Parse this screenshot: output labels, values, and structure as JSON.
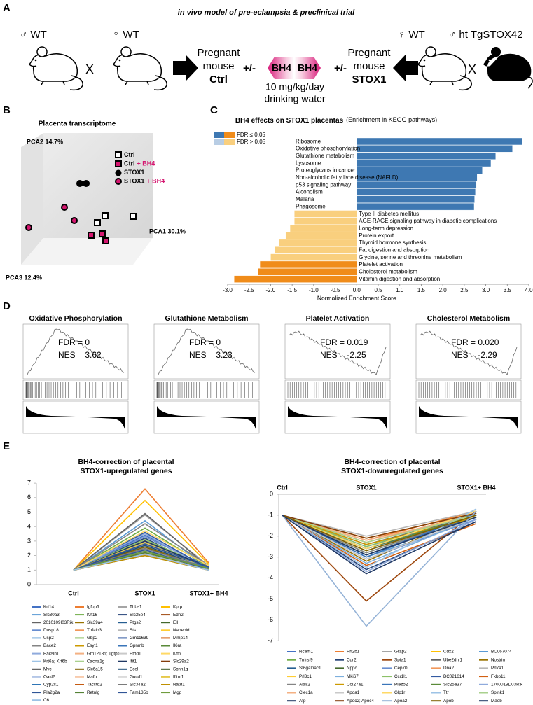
{
  "panel_a": {
    "label": "A",
    "title": "in vivo model of pre-eclampsia & preclinical trial",
    "male_wt": "♂ WT",
    "female_wt": "♀ WT",
    "cross_left": "X",
    "pregnant_ctrl": [
      "Pregnant",
      "mouse",
      "Ctrl"
    ],
    "plusminus_left": "+/-",
    "bh4_left": "BH4",
    "bh4_right": "BH4",
    "dose": [
      "10 mg/kg/day",
      "drinking water"
    ],
    "plusminus_right": "+/-",
    "pregnant_stox1": [
      "Pregnant",
      "mouse",
      "STOX1"
    ],
    "female_wt_right": "♀ WT",
    "cross_right": "X",
    "male_tg": "♂ ht TgSTOX42"
  },
  "panel_b": {
    "label": "B",
    "title": "Placenta transcriptome",
    "pca2": "PCA2 14.7%",
    "pca1": "PCA1 30.1%",
    "pca3": "PCA3 12.4%",
    "legend": [
      {
        "name": "Ctrl"
      },
      {
        "name": "Ctrl",
        "suffix": "+ BH4"
      },
      {
        "name": "STOX1"
      },
      {
        "name": "STOX1",
        "suffix": "+ BH4"
      }
    ]
  },
  "panel_c": {
    "label": "C"
  },
  "panel_d": {
    "label": "D",
    "plots": [
      {
        "title": "Oxidative Phosphorylation",
        "fdr": "FDR = 0",
        "nes": "NES = 3.62"
      },
      {
        "title": "Glutathione Metabolism",
        "fdr": "FDR = 0",
        "nes": "NES = 3.23"
      },
      {
        "title": "Platelet Activation",
        "fdr": "FDR = 0.019",
        "nes": "NES = -2.25"
      },
      {
        "title": "Cholesterol Metabolism",
        "fdr": "FDR = 0.020",
        "nes": "NES = -2.29"
      }
    ]
  },
  "panel_e": {
    "label": "E"
  },
  "chart_data": [
    {
      "type": "hbar",
      "title": "BH4 effects on STOX1 placentas",
      "subtitle": "(Enrichment in KEGG pathways)",
      "x_label": "Normalized Enrichment Score",
      "legend": [
        {
          "label": "FDR ≤ 0.05",
          "colors": [
            "#3e78b2",
            "#f08c1a"
          ]
        },
        {
          "label": "FDR > 0.05",
          "colors": [
            "#b8cde4",
            "#f9cf7e"
          ]
        }
      ],
      "categories": [
        "Ribosome",
        "Oxidative phosphorylation",
        "Glutathione metabolism",
        "Lysosome",
        "Proteoglycans in cancer",
        "Non-alcoholic fatty livre disease (NAFLD)",
        "p53 signaling pathway",
        "Alcoholism",
        "Malaria",
        "Phagosome",
        "Type II diabetes mellitus",
        "AGE-RAGE signaling pathway in diabetic complications",
        "Long-term depression",
        "Protein export",
        "Thyroid hormone synthesis",
        "Fat digestion and absorption",
        "Glycine, serine and threonine metabolism",
        "Platelet activation",
        "Cholesterol metabolism",
        "Vitamin digestion and absorption"
      ],
      "values": [
        3.85,
        3.62,
        3.23,
        3.12,
        2.92,
        2.8,
        2.78,
        2.76,
        2.74,
        2.73,
        -1.45,
        -1.45,
        -1.55,
        -1.65,
        -1.8,
        -1.9,
        -2.0,
        -2.25,
        -2.29,
        -2.85
      ],
      "colors": [
        "#3e78b2",
        "#3e78b2",
        "#3e78b2",
        "#3e78b2",
        "#3e78b2",
        "#3e78b2",
        "#3e78b2",
        "#3e78b2",
        "#3e78b2",
        "#3e78b2",
        "#f9cf7e",
        "#f9cf7e",
        "#f9cf7e",
        "#f9cf7e",
        "#f9cf7e",
        "#f9cf7e",
        "#f9cf7e",
        "#f08c1a",
        "#f08c1a",
        "#f08c1a"
      ],
      "xlim": [
        -3,
        4
      ],
      "xticks": [
        {
          "value": -3,
          "label": "-3.0"
        },
        {
          "value": -2.5,
          "label": "-2.5"
        },
        {
          "value": -2,
          "label": "-2.0"
        },
        {
          "value": -1.5,
          "label": "-1.5"
        },
        {
          "value": -1,
          "label": "-1.0"
        },
        {
          "value": -0.5,
          "label": "-0.5"
        },
        {
          "value": 0,
          "label": "0.0"
        },
        {
          "value": 0.5,
          "label": "0.5"
        },
        {
          "value": 1,
          "label": "1.0"
        },
        {
          "value": 1.5,
          "label": "1.5"
        },
        {
          "value": 2,
          "label": "2.0"
        },
        {
          "value": 2.5,
          "label": "2.5"
        },
        {
          "value": 3,
          "label": "3.0"
        },
        {
          "value": 3.5,
          "label": "3.5"
        },
        {
          "value": 4,
          "label": "4.0"
        }
      ]
    },
    {
      "type": "line",
      "title": [
        "BH4-correction of placental",
        "STOX1-upregulated genes"
      ],
      "categories": [
        "Ctrl",
        "STOX1",
        "STOX1+ BH4"
      ],
      "ylim": [
        0,
        7
      ],
      "yticks": [
        0,
        1,
        2,
        3,
        4,
        5,
        6,
        7
      ],
      "series": [
        {
          "name": "Krt14",
          "color": "#4472c4",
          "values": [
            1,
            3.4,
            1.2
          ]
        },
        {
          "name": "Igfbp6",
          "color": "#ed7d31",
          "values": [
            1,
            6.6,
            1.5
          ]
        },
        {
          "name": "Thbs1",
          "color": "#a5a5a5",
          "values": [
            1,
            4.8,
            1.3
          ]
        },
        {
          "name": "Kprp",
          "color": "#ffc000",
          "values": [
            1,
            5.8,
            1.4
          ]
        },
        {
          "name": "Slc30a3",
          "color": "#5b9bd5",
          "values": [
            1,
            4.4,
            1.1
          ]
        },
        {
          "name": "Krt16",
          "color": "#70ad47",
          "values": [
            1,
            3.9,
            1.2
          ]
        },
        {
          "name": "Slc35e4",
          "color": "#264478",
          "values": [
            1,
            3.2,
            1
          ]
        },
        {
          "name": "Edn2",
          "color": "#9e480e",
          "values": [
            1,
            3,
            1.1
          ]
        },
        {
          "name": "2010109I03Rik",
          "color": "#636363",
          "values": [
            1,
            4.9,
            1.2
          ]
        },
        {
          "name": "Slc39a4",
          "color": "#997300",
          "values": [
            1,
            2.9,
            1
          ]
        },
        {
          "name": "Ptgs2",
          "color": "#255e91",
          "values": [
            1,
            2.6,
            1.1
          ]
        },
        {
          "name": "Ell",
          "color": "#43682b",
          "values": [
            1,
            2.5,
            1
          ]
        },
        {
          "name": "Dusp18",
          "color": "#698ed0",
          "values": [
            1,
            3.3,
            1.2
          ]
        },
        {
          "name": "Tnfaip3",
          "color": "#f1975a",
          "values": [
            1,
            2.8,
            1.1
          ]
        },
        {
          "name": "Sts",
          "color": "#b7b7b7",
          "values": [
            1,
            2.4,
            1
          ]
        },
        {
          "name": "Napepld",
          "color": "#ffcd33",
          "values": [
            1,
            2.3,
            1.1
          ]
        },
        {
          "name": "Usp2",
          "color": "#7cafdd",
          "values": [
            1,
            2.7,
            1
          ]
        },
        {
          "name": "Gbp2",
          "color": "#8cc168",
          "values": [
            1,
            3.1,
            1.2
          ]
        },
        {
          "name": "Gm11639",
          "color": "#335aa1",
          "values": [
            1,
            3.6,
            1.1
          ]
        },
        {
          "name": "Mmp14",
          "color": "#d26012",
          "values": [
            1,
            2.2,
            1
          ]
        },
        {
          "name": "Bace2",
          "color": "#848484",
          "values": [
            1,
            4.2,
            1.3
          ]
        },
        {
          "name": "Esyt1",
          "color": "#cc9a00",
          "values": [
            1,
            2.6,
            1.1
          ]
        },
        {
          "name": "Gpnmb",
          "color": "#3a75b9",
          "values": [
            1,
            2.9,
            1.2
          ]
        },
        {
          "name": "Il6ra",
          "color": "#5a8a39",
          "values": [
            1,
            2.1,
            1
          ]
        },
        {
          "name": "Pacsin1",
          "color": "#8faadc",
          "values": [
            1,
            3.5,
            1
          ]
        },
        {
          "name": "Gm12185; Tgtp1",
          "color": "#f4b183",
          "values": [
            1,
            2.4,
            1.2
          ]
        },
        {
          "name": "Efhd1",
          "color": "#c9c9c9",
          "values": [
            1,
            2.8,
            1.1
          ]
        },
        {
          "name": "Krt5",
          "color": "#ffd966",
          "values": [
            1,
            3.7,
            1.3
          ]
        },
        {
          "name": "Krt6a; Krt6b",
          "color": "#9dc3e6",
          "values": [
            1,
            2.5,
            1
          ]
        },
        {
          "name": "Cacna1g",
          "color": "#a9d18e",
          "values": [
            1,
            2.3,
            1.1
          ]
        },
        {
          "name": "Ifit1",
          "color": "#203864",
          "values": [
            1,
            3,
            1.2
          ]
        },
        {
          "name": "Slc29a2",
          "color": "#843c0c",
          "values": [
            1,
            2.2,
            1
          ]
        },
        {
          "name": "Myc",
          "color": "#404040",
          "values": [
            1,
            2,
            1.1
          ]
        },
        {
          "name": "Slc6a15",
          "color": "#7f6000",
          "values": [
            1,
            2.6,
            1
          ]
        },
        {
          "name": "Ecel",
          "color": "#1f4e79",
          "values": [
            1,
            2.7,
            1.1
          ]
        },
        {
          "name": "Scnn1g",
          "color": "#385723",
          "values": [
            1,
            2.1,
            1
          ]
        },
        {
          "name": "Oasl2",
          "color": "#b4c7e7",
          "values": [
            1,
            2.4,
            1.2
          ]
        },
        {
          "name": "Mafb",
          "color": "#f8cbad",
          "values": [
            1,
            2,
            1.1
          ]
        },
        {
          "name": "Gucd1",
          "color": "#dbdbdb",
          "values": [
            1,
            2.2,
            1
          ]
        },
        {
          "name": "Ifitm1",
          "color": "#e6c84a",
          "values": [
            1,
            2.9,
            1.1
          ]
        },
        {
          "name": "Cyp2s1",
          "color": "#2e75b6",
          "values": [
            1,
            2.3,
            1.2
          ]
        },
        {
          "name": "Tacstd2",
          "color": "#c55a11",
          "values": [
            1,
            2.1,
            1
          ]
        },
        {
          "name": "Slc34a2",
          "color": "#7b7b7b",
          "values": [
            1,
            2.5,
            1.1
          ]
        },
        {
          "name": "Natd1",
          "color": "#bf9000",
          "values": [
            1,
            2,
            1
          ]
        },
        {
          "name": "Pla2g2a",
          "color": "#2f5597",
          "values": [
            1,
            2.8,
            1.2
          ]
        },
        {
          "name": "Retnlg",
          "color": "#548235",
          "values": [
            1,
            2.2,
            1.1
          ]
        },
        {
          "name": "Fam135b",
          "color": "#305496",
          "values": [
            1,
            2.4,
            1
          ]
        },
        {
          "name": "Mgp",
          "color": "#6f9c3d",
          "values": [
            1,
            2.3,
            1.1
          ]
        },
        {
          "name": "C6",
          "color": "#9dc3e6",
          "values": [
            1,
            2.1,
            1
          ]
        }
      ]
    },
    {
      "type": "line",
      "title": [
        "BH4-correction of placental",
        "STOX1-downregulated genes"
      ],
      "categories": [
        "Ctrl",
        "STOX1",
        "STOX1+ BH4"
      ],
      "ylim": [
        -7,
        0
      ],
      "yticks": [
        -7,
        -6,
        -5,
        -4,
        -3,
        -2,
        -1,
        0
      ],
      "series": [
        {
          "name": "Ncam1",
          "color": "#4472c4",
          "values": [
            -1,
            -2.5,
            -1
          ]
        },
        {
          "name": "Prl2b1",
          "color": "#ed7d31",
          "values": [
            -1,
            -2.2,
            -0.8
          ]
        },
        {
          "name": "Grap2",
          "color": "#a5a5a5",
          "values": [
            -1,
            -2.7,
            -1.1
          ]
        },
        {
          "name": "Cdx2",
          "color": "#ffc000",
          "values": [
            -1,
            -2.1,
            -0.9
          ]
        },
        {
          "name": "BC067074",
          "color": "#5b9bd5",
          "values": [
            -1,
            -3,
            -1.2
          ]
        },
        {
          "name": "Tnfrsf9",
          "color": "#70ad47",
          "values": [
            -1,
            -2.8,
            -1
          ]
        },
        {
          "name": "Cdr2",
          "color": "#264478",
          "values": [
            -1,
            -3.6,
            -1.3
          ]
        },
        {
          "name": "Spta1",
          "color": "#9e480e",
          "values": [
            -1,
            -5.1,
            -0.8
          ]
        },
        {
          "name": "Ube2dnl1",
          "color": "#636363",
          "values": [
            -1,
            -2.4,
            -1
          ]
        },
        {
          "name": "Nostrin",
          "color": "#997300",
          "values": [
            -1,
            -3.2,
            -0.9
          ]
        },
        {
          "name": "St6galnac1",
          "color": "#255e91",
          "values": [
            -1,
            -2.6,
            -1.1
          ]
        },
        {
          "name": "Nppc",
          "color": "#43682b",
          "values": [
            -1,
            -2.9,
            -1
          ]
        },
        {
          "name": "Cep70",
          "color": "#698ed0",
          "values": [
            -1,
            -3.1,
            -1.2
          ]
        },
        {
          "name": "Dna2",
          "color": "#f1975a",
          "values": [
            -1,
            -2.3,
            -0.9
          ]
        },
        {
          "name": "Prl7a1",
          "color": "#b7b7b7",
          "values": [
            -1,
            -2,
            -0.8
          ]
        },
        {
          "name": "Prl3c1",
          "color": "#ffcd33",
          "values": [
            -1,
            -2.7,
            -1
          ]
        },
        {
          "name": "Mki67",
          "color": "#7cafdd",
          "values": [
            -1,
            -3.3,
            -1.1
          ]
        },
        {
          "name": "Ccr1l1",
          "color": "#8cc168",
          "values": [
            -1,
            -2.5,
            -0.9
          ]
        },
        {
          "name": "BC021614",
          "color": "#335aa1",
          "values": [
            -1,
            -2.9,
            -1
          ]
        },
        {
          "name": "Fkbp11",
          "color": "#d26012",
          "values": [
            -1,
            -3.4,
            -1.4
          ]
        },
        {
          "name": "Alas2",
          "color": "#848484",
          "values": [
            -1,
            -2.8,
            -1
          ]
        },
        {
          "name": "Col27a1",
          "color": "#cc9a00",
          "values": [
            -1,
            -2.4,
            -1.1
          ]
        },
        {
          "name": "Piezo2",
          "color": "#3a75b9",
          "values": [
            -1,
            -3,
            -0.9
          ]
        },
        {
          "name": "Slc25a37",
          "color": "#5a8a39",
          "values": [
            -1,
            -2.6,
            -1
          ]
        },
        {
          "name": "1700019D03Rik",
          "color": "#8faadc",
          "values": [
            -1,
            -3.7,
            -1.2
          ]
        },
        {
          "name": "Clec1a",
          "color": "#f4b183",
          "values": [
            -1,
            -2.2,
            -1
          ]
        },
        {
          "name": "Apoa1",
          "color": "#c9c9c9",
          "values": [
            -1,
            -3.1,
            -1.1
          ]
        },
        {
          "name": "Glp1r",
          "color": "#ffd966",
          "values": [
            -1,
            -2.6,
            -0.8
          ]
        },
        {
          "name": "Ttr",
          "color": "#9dc3e6",
          "values": [
            -1,
            -3.5,
            -0.7
          ]
        },
        {
          "name": "Spink1",
          "color": "#a9d18e",
          "values": [
            -1,
            -2.3,
            -1
          ]
        },
        {
          "name": "Afp",
          "color": "#203864",
          "values": [
            -1,
            -2.9,
            -1.1
          ]
        },
        {
          "name": "Apoc2; Apoc4",
          "color": "#843c0c",
          "values": [
            -1,
            -2.1,
            -0.9
          ]
        },
        {
          "name": "Apoa2",
          "color": "#95b3d7",
          "values": [
            -1,
            -6.3,
            -0.8
          ]
        },
        {
          "name": "Apob",
          "color": "#7f6000",
          "values": [
            -1,
            -2.7,
            -1
          ]
        },
        {
          "name": "Maob",
          "color": "#1f3864",
          "values": [
            -1,
            -3.8,
            -1.3
          ]
        }
      ]
    }
  ]
}
